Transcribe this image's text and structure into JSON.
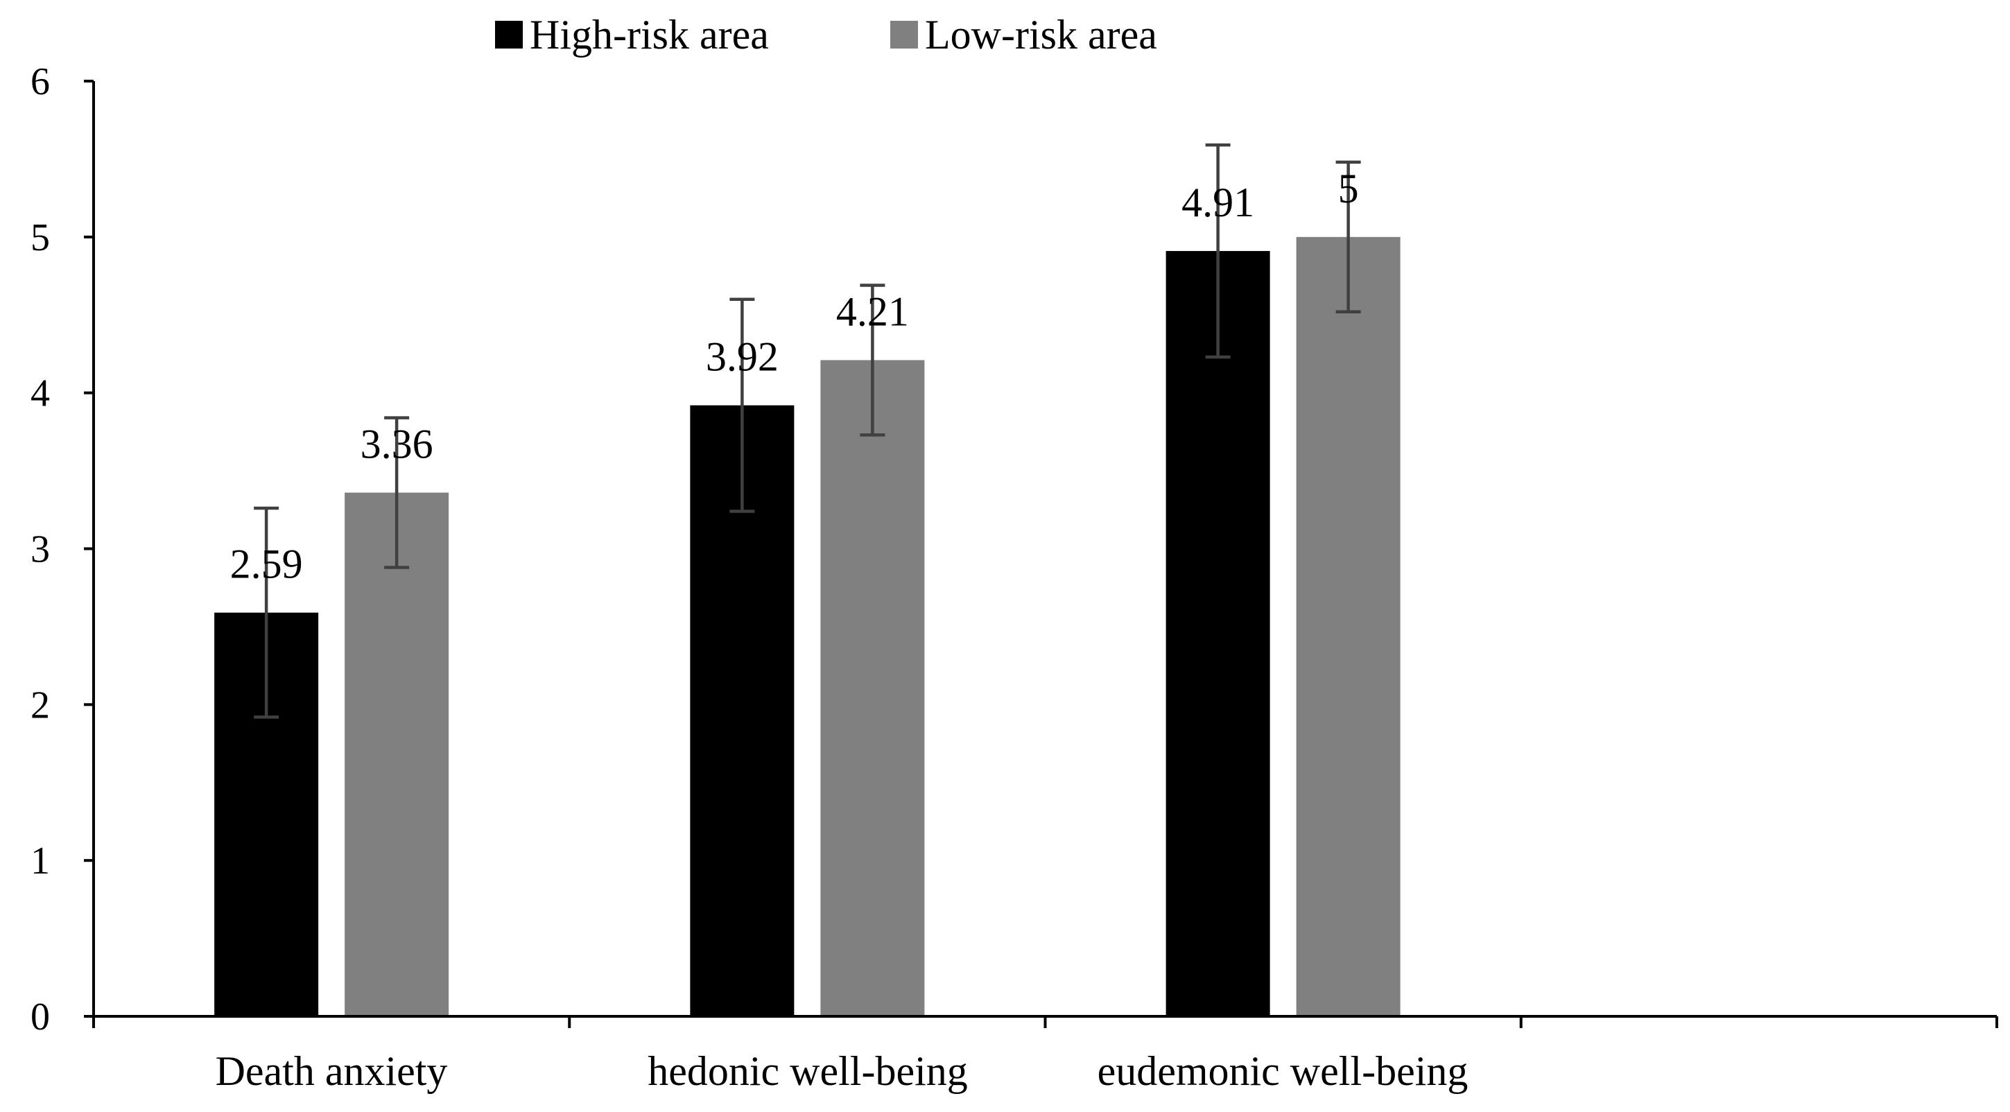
{
  "chart_data": {
    "type": "bar",
    "title": "",
    "xlabel": "",
    "ylabel": "",
    "ylim": [
      0,
      6
    ],
    "yticks": [
      0,
      1,
      2,
      3,
      4,
      5,
      6
    ],
    "grid": false,
    "legend_position": "top-center",
    "categories": [
      "Death anxiety",
      "hedonic well-being",
      "eudemonic well-being"
    ],
    "series": [
      {
        "name": "High-risk area",
        "color": "#000000",
        "values": [
          2.59,
          3.92,
          4.91
        ],
        "labels": [
          "2.59",
          "3.92",
          "4.91"
        ],
        "error": [
          0.67,
          0.68,
          0.68
        ]
      },
      {
        "name": "Low-risk area",
        "color": "#808080",
        "values": [
          3.36,
          4.21,
          5
        ],
        "labels": [
          "3.36",
          "4.21",
          "5"
        ],
        "error": [
          0.48,
          0.48,
          0.48
        ]
      }
    ]
  }
}
